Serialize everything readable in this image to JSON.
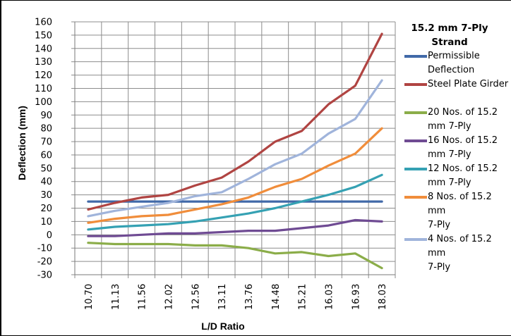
{
  "chart_data": {
    "type": "line",
    "xlabel": "L/D Ratio",
    "ylabel": "Deflection (mm)",
    "ylim": [
      -30,
      160
    ],
    "ytick_step": 10,
    "grid": true,
    "legend_position": "right",
    "legend_title": "15.2 mm  7-Ply\nStrand",
    "categories": [
      "10.70",
      "11.13",
      "11.56",
      "12.02",
      "12.56",
      "13.11",
      "13.76",
      "14.48",
      "15.21",
      "16.03",
      "16.93",
      "18.03"
    ],
    "series": [
      {
        "name": "Permissible\nDeflection",
        "color": "#4169a8",
        "values": [
          25,
          25,
          25,
          25,
          25,
          25,
          25,
          25,
          25,
          25,
          25,
          25
        ]
      },
      {
        "name": "Steel Plate Girder",
        "color": "#b04442",
        "values": [
          19,
          24,
          28,
          30,
          37,
          43,
          55,
          70,
          78,
          98,
          112,
          151
        ]
      },
      {
        "name": "\n20 Nos. of 15.2\nmm 7-Ply",
        "color": "#8bad49",
        "values": [
          -6,
          -7,
          -7,
          -7,
          -8,
          -8,
          -10,
          -14,
          -13,
          -16,
          -14,
          -25
        ]
      },
      {
        "name": "16 Nos. of 15.2\nmm 7-Ply",
        "color": "#6f4b93",
        "values": [
          -1,
          -1,
          0,
          1,
          1,
          2,
          3,
          3,
          5,
          7,
          11,
          10
        ]
      },
      {
        "name": "12 Nos. of 15.2\nmm 7-Ply",
        "color": "#35a1b3",
        "values": [
          4,
          6,
          7,
          8,
          10,
          13,
          16,
          20,
          25,
          30,
          36,
          45
        ]
      },
      {
        "name": "8 Nos. of 15.2 mm\n7-Ply",
        "color": "#f08d3b",
        "values": [
          9,
          12,
          14,
          15,
          19,
          23,
          28,
          36,
          42,
          52,
          61,
          80
        ]
      },
      {
        "name": "4 Nos. of 15.2 mm\n7-Ply",
        "color": "#a0b4db",
        "values": [
          14,
          18,
          21,
          24,
          29,
          32,
          42,
          53,
          61,
          76,
          87,
          116
        ]
      }
    ]
  }
}
